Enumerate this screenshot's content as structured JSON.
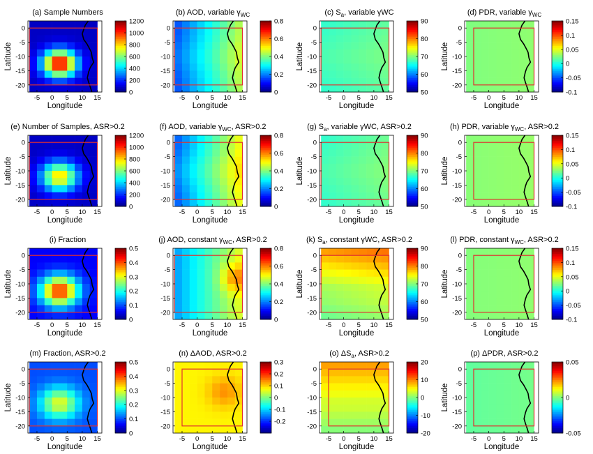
{
  "figure": {
    "common": {
      "xlabel": "Longitude",
      "ylabel": "Latitude",
      "xticks": [
        -5,
        0,
        5,
        10,
        15
      ],
      "yticks": [
        0,
        -5,
        -10,
        -15,
        -20
      ],
      "xlim": [
        -8,
        16.5
      ],
      "ylim": [
        -22.5,
        2.5
      ],
      "grid_lon_start": -7.5,
      "grid_lon_step": 2.5,
      "grid_lat_start": 2.5,
      "grid_lat_step": -2.5,
      "ncols": 9,
      "nrows": 10,
      "region_box_color": "#e03030",
      "coastline_color": "#000000",
      "colormap": "jet"
    }
  },
  "chart_data": [
    {
      "id": "a",
      "type": "heatmap",
      "field": "count",
      "title": "(a) Sample Numbers",
      "title_main": "(a) Sample Numbers",
      "title_sub": "",
      "title_tail": "",
      "cbar_ticks": [
        "0",
        "200",
        "400",
        "600",
        "800",
        "1000",
        "1200"
      ],
      "vmin": 0,
      "vmax": 1200,
      "show_ylabel": true,
      "region_box": [
        -7.5,
        15,
        -20,
        0
      ],
      "coastline": true
    },
    {
      "id": "b",
      "type": "heatmap",
      "field": "aod",
      "title": "(b) AOD, variable γWC",
      "title_main": "(b) AOD, variable γ",
      "title_sub": "WC",
      "title_tail": "",
      "cbar_ticks": [
        "0",
        "0.2",
        "0.4",
        "0.6",
        "0.8"
      ],
      "vmin": 0,
      "vmax": 0.8,
      "show_ylabel": false,
      "region_box": [
        -7.5,
        15,
        -20,
        0
      ],
      "coastline": true
    },
    {
      "id": "c",
      "type": "heatmap",
      "field": "sa",
      "title": "(c) Sa, variable γWC",
      "title_main": "(c) S",
      "title_sub": "a",
      "title_tail": ", variable γWC",
      "cbar_ticks": [
        "50",
        "60",
        "70",
        "80",
        "90"
      ],
      "vmin": 50,
      "vmax": 90,
      "show_ylabel": true,
      "region_box": [
        -7.5,
        15,
        -20,
        0
      ],
      "coastline": true
    },
    {
      "id": "d",
      "type": "heatmap",
      "field": "pdr",
      "title": "(d) PDR, variable γWC",
      "title_main": "(d) PDR, variable γ",
      "title_sub": "WC",
      "title_tail": "",
      "cbar_ticks": [
        "-0.1",
        "-0.05",
        "0",
        "0.05",
        "0.1",
        "0.15"
      ],
      "vmin": -0.1,
      "vmax": 0.15,
      "show_ylabel": true,
      "region_box": [
        -5,
        15,
        -20,
        0
      ],
      "coastline": true
    },
    {
      "id": "e",
      "type": "heatmap",
      "field": "count2",
      "title": "(e) Number of Samples, ASR>0.2",
      "title_main": "(e) Number of Samples, ASR>0.2",
      "title_sub": "",
      "title_tail": "",
      "cbar_ticks": [
        "0",
        "200",
        "400",
        "600",
        "800",
        "1000",
        "1200"
      ],
      "vmin": 0,
      "vmax": 1200,
      "show_ylabel": true,
      "region_box": [
        -7.5,
        15,
        -20,
        0
      ],
      "coastline": true
    },
    {
      "id": "f",
      "type": "heatmap",
      "field": "aod2",
      "title": "(f) AOD, variable γWC, ASR>0.2",
      "title_main": "(f) AOD, variable γ",
      "title_sub": "WC",
      "title_tail": ", ASR>0.2",
      "cbar_ticks": [
        "0",
        "0.2",
        "0.4",
        "0.6",
        "0.8"
      ],
      "vmin": 0,
      "vmax": 0.8,
      "show_ylabel": false,
      "region_box": [
        -7.5,
        15,
        -20,
        0
      ],
      "coastline": true
    },
    {
      "id": "g",
      "type": "heatmap",
      "field": "sa2",
      "title": "(g) Sa, variable γWC, ASR>0.2",
      "title_main": "(g) S",
      "title_sub": "a",
      "title_tail": ", variable γWC, ASR>0.2",
      "cbar_ticks": [
        "50",
        "60",
        "70",
        "80",
        "90"
      ],
      "vmin": 50,
      "vmax": 90,
      "show_ylabel": true,
      "region_box": [
        -7.5,
        15,
        -20,
        0
      ],
      "coastline": true
    },
    {
      "id": "h",
      "type": "heatmap",
      "field": "pdr2",
      "title": "(h) PDR, variable γWC, ASR>0.2",
      "title_main": "(h) PDR, variable γ",
      "title_sub": "WC",
      "title_tail": ", ASR>0.2",
      "cbar_ticks": [
        "-0.1",
        "-0.05",
        "0",
        "0.05",
        "0.1",
        "0.15"
      ],
      "vmin": -0.1,
      "vmax": 0.15,
      "show_ylabel": true,
      "region_box": [
        -5,
        15,
        -20,
        0
      ],
      "coastline": true
    },
    {
      "id": "i",
      "type": "heatmap",
      "field": "frac",
      "title": "(i) Fraction",
      "title_main": "(i) Fraction",
      "title_sub": "",
      "title_tail": "",
      "cbar_ticks": [
        "0",
        "0.1",
        "0.2",
        "0.3",
        "0.4",
        "0.5"
      ],
      "vmin": 0,
      "vmax": 0.5,
      "show_ylabel": true,
      "region_box": [
        -7.5,
        15,
        -20,
        0
      ],
      "coastline": true
    },
    {
      "id": "j",
      "type": "heatmap",
      "field": "aod3",
      "title": "(j) AOD, constant γWC, ASR>0.2",
      "title_main": "(j) AOD, constant γ",
      "title_sub": "WC",
      "title_tail": ", ASR>0.2",
      "cbar_ticks": [
        "0",
        "0.2",
        "0.4",
        "0.6",
        "0.8"
      ],
      "vmin": 0,
      "vmax": 0.8,
      "show_ylabel": false,
      "region_box": [
        -7.5,
        15,
        -20,
        0
      ],
      "coastline": true
    },
    {
      "id": "k",
      "type": "heatmap",
      "field": "sa3",
      "title": "(k) Sa, constant γWC, ASR>0.2",
      "title_main": "(k) S",
      "title_sub": "a",
      "title_tail": ", constant γWC, ASR>0.2",
      "cbar_ticks": [
        "50",
        "60",
        "70",
        "80",
        "90"
      ],
      "vmin": 50,
      "vmax": 90,
      "show_ylabel": true,
      "region_box": [
        -7.5,
        15,
        -20,
        0
      ],
      "coastline": true
    },
    {
      "id": "l",
      "type": "heatmap",
      "field": "pdr3",
      "title": "(l) PDR, constant γWC, ASR>0.2",
      "title_main": "(l) PDR, constant γ",
      "title_sub": "WC",
      "title_tail": ", ASR>0.2",
      "cbar_ticks": [
        "-0.1",
        "-0.05",
        "0",
        "0.05",
        "0.1",
        "0.15"
      ],
      "vmin": -0.1,
      "vmax": 0.15,
      "show_ylabel": true,
      "region_box": [
        -5,
        15,
        -20,
        0
      ],
      "coastline": true
    },
    {
      "id": "m",
      "type": "heatmap",
      "field": "frac2",
      "title": "(m) Fraction, ASR>0.2",
      "title_main": "(m) Fraction, ASR>0.2",
      "title_sub": "",
      "title_tail": "",
      "cbar_ticks": [
        "0",
        "0.1",
        "0.2",
        "0.3",
        "0.4",
        "0.5"
      ],
      "vmin": 0,
      "vmax": 0.5,
      "show_ylabel": true,
      "region_box": [
        -7.5,
        15,
        -20,
        0
      ],
      "coastline": true
    },
    {
      "id": "n",
      "type": "heatmap",
      "field": "daod",
      "title": "(n) ΔAOD, ASR>0.2",
      "title_main": "(n) ΔAOD, ASR>0.2",
      "title_sub": "",
      "title_tail": "",
      "cbar_ticks": [
        "-0.2",
        "-0.1",
        "0",
        "0.1",
        "0.2",
        "0.3"
      ],
      "vmin": -0.3,
      "vmax": 0.3,
      "show_ylabel": false,
      "region_box": [
        -5,
        15,
        -20,
        0
      ],
      "coastline": true
    },
    {
      "id": "o",
      "type": "heatmap",
      "field": "dsa",
      "title": "(o) ΔSa, ASR>0.2",
      "title_main": "(o) ΔS",
      "title_sub": "a",
      "title_tail": ", ASR>0.2",
      "cbar_ticks": [
        "-20",
        "-10",
        "0",
        "10",
        "20"
      ],
      "vmin": -20,
      "vmax": 20,
      "show_ylabel": false,
      "region_box": [
        -5,
        15,
        -20,
        0
      ],
      "coastline": true
    },
    {
      "id": "p",
      "type": "heatmap",
      "field": "dpdr",
      "title": "(p) ΔPDR, ASR>0.2",
      "title_main": "(p) ΔPDR, ASR>0.2",
      "title_sub": "",
      "title_tail": "",
      "cbar_ticks": [
        "-0.05",
        "0",
        "0.05"
      ],
      "vmin": -0.05,
      "vmax": 0.05,
      "show_ylabel": true,
      "region_box": [
        -5,
        15,
        -20,
        0
      ],
      "coastline": true
    }
  ]
}
